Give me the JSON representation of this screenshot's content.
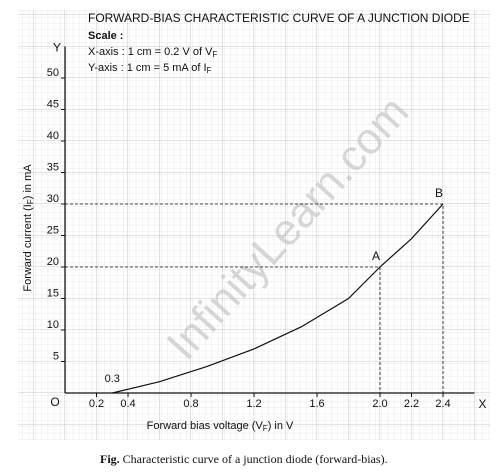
{
  "chart_data": {
    "type": "line",
    "title": "FORWARD-BIAS CHARACTERISTIC CURVE OF A JUNCTION DIODE",
    "scale_heading": "Scale :",
    "scale_x": [
      "X-axis : 1 cm = 0.2 V of V",
      "F"
    ],
    "scale_y": [
      "Y-axis : 1 cm = 5 mA of I",
      "F"
    ],
    "x_label": [
      "Forward bias voltage (V",
      "F",
      ") in V"
    ],
    "y_label": [
      "Forward current (I",
      "F",
      ") in mA"
    ],
    "x_axis_letter": "X",
    "y_axis_letter": "Y",
    "origin_label": "O",
    "x": [
      0.3,
      0.6,
      0.9,
      1.2,
      1.5,
      1.8,
      2.0,
      2.2,
      2.4
    ],
    "series": [
      {
        "name": "Forward current",
        "color": "#111111",
        "values": [
          0,
          1.8,
          4.2,
          7,
          10.5,
          15,
          20,
          24.5,
          30
        ]
      }
    ],
    "annotations": [
      {
        "text": "0.3",
        "x": 0.3,
        "y": 0
      },
      {
        "text": "A",
        "x": 2.0,
        "y": 20
      },
      {
        "text": "B",
        "x": 2.4,
        "y": 30
      }
    ],
    "xlim": [
      0,
      2.6
    ],
    "ylim": [
      0,
      55
    ],
    "xticks": [
      0.2,
      0.4,
      0.8,
      1.2,
      1.6,
      {
        "value": 2,
        "label": "2.0"
      },
      2.2,
      2.4
    ],
    "yticks": [
      5,
      10,
      15,
      20,
      25,
      30,
      35,
      40,
      45,
      50
    ],
    "watermark": "InfinityLearn.com",
    "caption": [
      "Fig.",
      "Characteristic curve of a junction diode (forward-bias)."
    ]
  }
}
